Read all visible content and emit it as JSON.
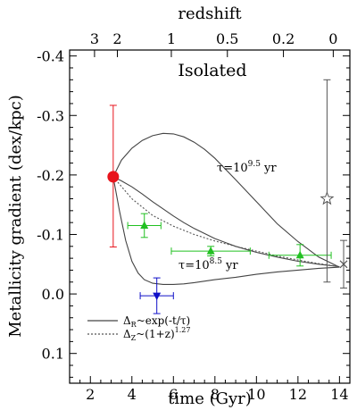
{
  "chart_data": {
    "type": "scatter",
    "panel_label": "Isolated",
    "xlabel": "time (Gyr)",
    "ylabel": "Metallicity gradient (dex/kpc)",
    "top_label": "redshift",
    "xlim": [
      1,
      14.5
    ],
    "ylim": [
      0.15,
      -0.41
    ],
    "x_ticks": [
      "2",
      "4",
      "6",
      "8",
      "10",
      "12",
      "14"
    ],
    "y_ticks": [
      "-0.4",
      "-0.3",
      "-0.2",
      "-0.1",
      "0.0",
      "0.1"
    ],
    "redshift_ticks": [
      {
        "label": "3",
        "time": 2.2
      },
      {
        "label": "2",
        "time": 3.3
      },
      {
        "label": "1",
        "time": 5.9
      },
      {
        "label": "0.5",
        "time": 8.6
      },
      {
        "label": "0.2",
        "time": 11.3
      },
      {
        "label": "0",
        "time": 13.7
      }
    ],
    "annotations": {
      "tau_high": "τ=10",
      "tau_high_exp": "9.5",
      "tau_low": "τ=10",
      "tau_low_exp": "8.5",
      "tau_unit": "yr"
    },
    "legend": {
      "solid_main": "Δ",
      "solid_sub": "R",
      "solid_rest": "~exp(-t/τ)",
      "dotted_main": "Δ",
      "dotted_sub": "Z",
      "dotted_rest": "~(1+z)",
      "dotted_exp": "1.27"
    },
    "points": [
      {
        "marker": "circle",
        "color": "#e8141c",
        "x": 3.1,
        "y": -0.197,
        "xerr": 0,
        "yerr_low": 0.118,
        "yerr_high": 0.12
      },
      {
        "marker": "triangle-up",
        "color": "#22c022",
        "x": 4.6,
        "y": -0.115,
        "xerr": 0.8,
        "yerr_low": 0.02,
        "yerr_high": 0.02
      },
      {
        "marker": "triangle-up",
        "color": "#22c022",
        "x": 7.8,
        "y": -0.072,
        "xerr": 1.9,
        "yerr_low": 0.008,
        "yerr_high": 0.008
      },
      {
        "marker": "triangle-up",
        "color": "#22c022",
        "x": 12.1,
        "y": -0.065,
        "xerr": 1.5,
        "yerr_low": 0.018,
        "yerr_high": 0.018
      },
      {
        "marker": "triangle-down",
        "color": "#1010c8",
        "x": 5.2,
        "y": 0.003,
        "xerr": 0.8,
        "yerr_low": 0.03,
        "yerr_high": 0.03
      },
      {
        "marker": "star",
        "color": "#555555",
        "x": 13.4,
        "y": -0.16,
        "xerr": 0,
        "yerr_low": 0.14,
        "yerr_high": 0.2
      },
      {
        "marker": "cross",
        "color": "#555555",
        "x": 14.2,
        "y": -0.05,
        "xerr": 0,
        "yerr_low": 0.04,
        "yerr_high": 0.04
      }
    ],
    "series": [
      {
        "style": "solid",
        "color": "#444444",
        "x": [
          3.1,
          3.5,
          4,
          4.5,
          5,
          5.5,
          6,
          6.5,
          7,
          7.5,
          8,
          8.5,
          9,
          10,
          11,
          12,
          13,
          14
        ],
        "y": [
          -0.197,
          -0.225,
          -0.245,
          -0.258,
          -0.266,
          -0.27,
          -0.269,
          -0.264,
          -0.255,
          -0.243,
          -0.228,
          -0.21,
          -0.192,
          -0.155,
          -0.118,
          -0.088,
          -0.062,
          -0.045
        ]
      },
      {
        "style": "solid",
        "color": "#444444",
        "x": [
          3.1,
          3.5,
          4,
          4.5,
          5,
          5.5,
          6,
          6.5,
          7,
          8,
          9,
          10,
          11,
          12,
          13,
          14
        ],
        "y": [
          -0.197,
          -0.19,
          -0.18,
          -0.168,
          -0.155,
          -0.143,
          -0.131,
          -0.12,
          -0.11,
          -0.093,
          -0.08,
          -0.07,
          -0.062,
          -0.055,
          -0.05,
          -0.046
        ]
      },
      {
        "style": "dotted",
        "color": "#555555",
        "x": [
          3.1,
          4,
          5,
          6,
          7,
          8,
          9,
          10,
          11,
          12,
          13,
          14
        ],
        "y": [
          -0.197,
          -0.16,
          -0.132,
          -0.114,
          -0.1,
          -0.089,
          -0.08,
          -0.072,
          -0.064,
          -0.057,
          -0.051,
          -0.046
        ]
      },
      {
        "style": "solid",
        "color": "#444444",
        "x": [
          3.1,
          3.4,
          3.7,
          4,
          4.3,
          4.6,
          5,
          5.5,
          6,
          6.5,
          7,
          8,
          9,
          10,
          11,
          12,
          13,
          14
        ],
        "y": [
          -0.197,
          -0.14,
          -0.09,
          -0.055,
          -0.035,
          -0.024,
          -0.018,
          -0.016,
          -0.016,
          -0.017,
          -0.019,
          -0.024,
          -0.028,
          -0.033,
          -0.037,
          -0.04,
          -0.043,
          -0.045
        ]
      }
    ]
  }
}
